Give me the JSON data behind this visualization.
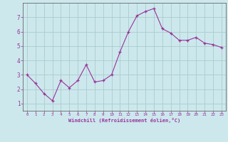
{
  "xlabel": "Windchill (Refroidissement éolien,°C)",
  "background_color": "#cce8ed",
  "grid_color": "#aacccc",
  "line_color": "#993399",
  "xlim": [
    -0.5,
    23.5
  ],
  "ylim": [
    0.5,
    8.0
  ],
  "xticks": [
    0,
    1,
    2,
    3,
    4,
    5,
    6,
    7,
    8,
    9,
    10,
    11,
    12,
    13,
    14,
    15,
    16,
    17,
    18,
    19,
    20,
    21,
    22,
    23
  ],
  "yticks": [
    1,
    2,
    3,
    4,
    5,
    6,
    7
  ],
  "x_data": [
    0,
    1,
    2,
    3,
    4,
    5,
    6,
    7,
    8,
    9,
    10,
    11,
    12,
    13,
    14,
    15,
    16,
    17,
    18,
    19,
    20,
    21,
    22,
    23
  ],
  "y_data": [
    3.0,
    2.4,
    1.7,
    1.2,
    2.6,
    2.1,
    2.6,
    3.7,
    2.5,
    2.6,
    3.0,
    4.6,
    6.0,
    7.1,
    7.4,
    7.6,
    6.2,
    5.9,
    5.4,
    5.4,
    5.6,
    5.2,
    5.1,
    4.9
  ]
}
